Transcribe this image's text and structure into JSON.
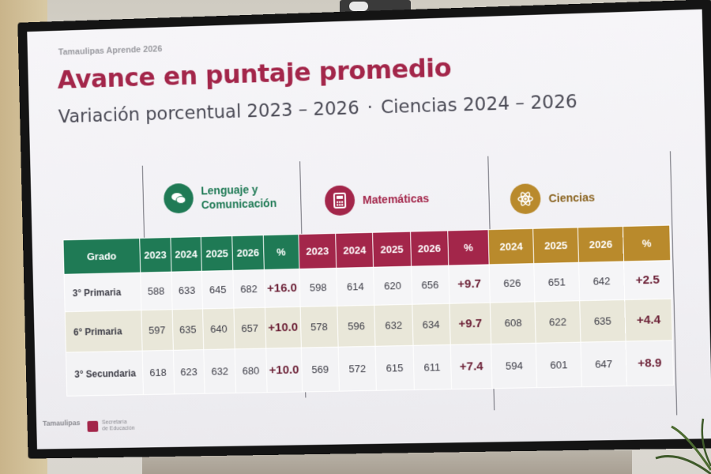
{
  "brand_top": "Tamaulipas Aprende 2026",
  "title": "Avance en puntaje promedio",
  "subtitle_left": "Variación porcentual 2023 – 2026",
  "subtitle_sep": "·",
  "subtitle_right": "Ciencias 2024 – 2026",
  "subjects": {
    "lenguaje": {
      "label_line1": "Lenguaje y",
      "label_line2": "Comunicación",
      "icon": "speech-bubbles-icon",
      "color": "#1f7a55"
    },
    "matematicas": {
      "label": "Matemáticas",
      "icon": "calculator-icon",
      "color": "#a3264a"
    },
    "ciencias": {
      "label": "Ciencias",
      "icon": "atom-icon",
      "color": "#b98a2c"
    }
  },
  "table": {
    "grado_header": "Grado",
    "lenguaje_headers": [
      "2023",
      "2024",
      "2025",
      "2026",
      "%"
    ],
    "matematicas_headers": [
      "2023",
      "2024",
      "2025",
      "2026",
      "%"
    ],
    "ciencias_headers": [
      "2024",
      "2025",
      "2026",
      "%"
    ],
    "rows": [
      {
        "grado": "3° Primaria",
        "lenguaje": [
          "588",
          "633",
          "645",
          "682",
          "+16.0"
        ],
        "matematicas": [
          "598",
          "614",
          "620",
          "656",
          "+9.7"
        ],
        "ciencias": [
          "626",
          "651",
          "642",
          "+2.5"
        ]
      },
      {
        "grado": "6° Primaria",
        "lenguaje": [
          "597",
          "635",
          "640",
          "657",
          "+10.0"
        ],
        "matematicas": [
          "578",
          "596",
          "632",
          "634",
          "+9.7"
        ],
        "ciencias": [
          "608",
          "622",
          "635",
          "+4.4"
        ]
      },
      {
        "grado": "3° Secundaria",
        "lenguaje": [
          "618",
          "623",
          "632",
          "680",
          "+10.0"
        ],
        "matematicas": [
          "569",
          "572",
          "615",
          "611",
          "+7.4"
        ],
        "ciencias": [
          "594",
          "601",
          "647",
          "+8.9"
        ]
      }
    ]
  },
  "footer": {
    "logo_left": "Tamaulipas",
    "logo_right_line1": "Secretaría",
    "logo_right_line2": "de Educación"
  }
}
